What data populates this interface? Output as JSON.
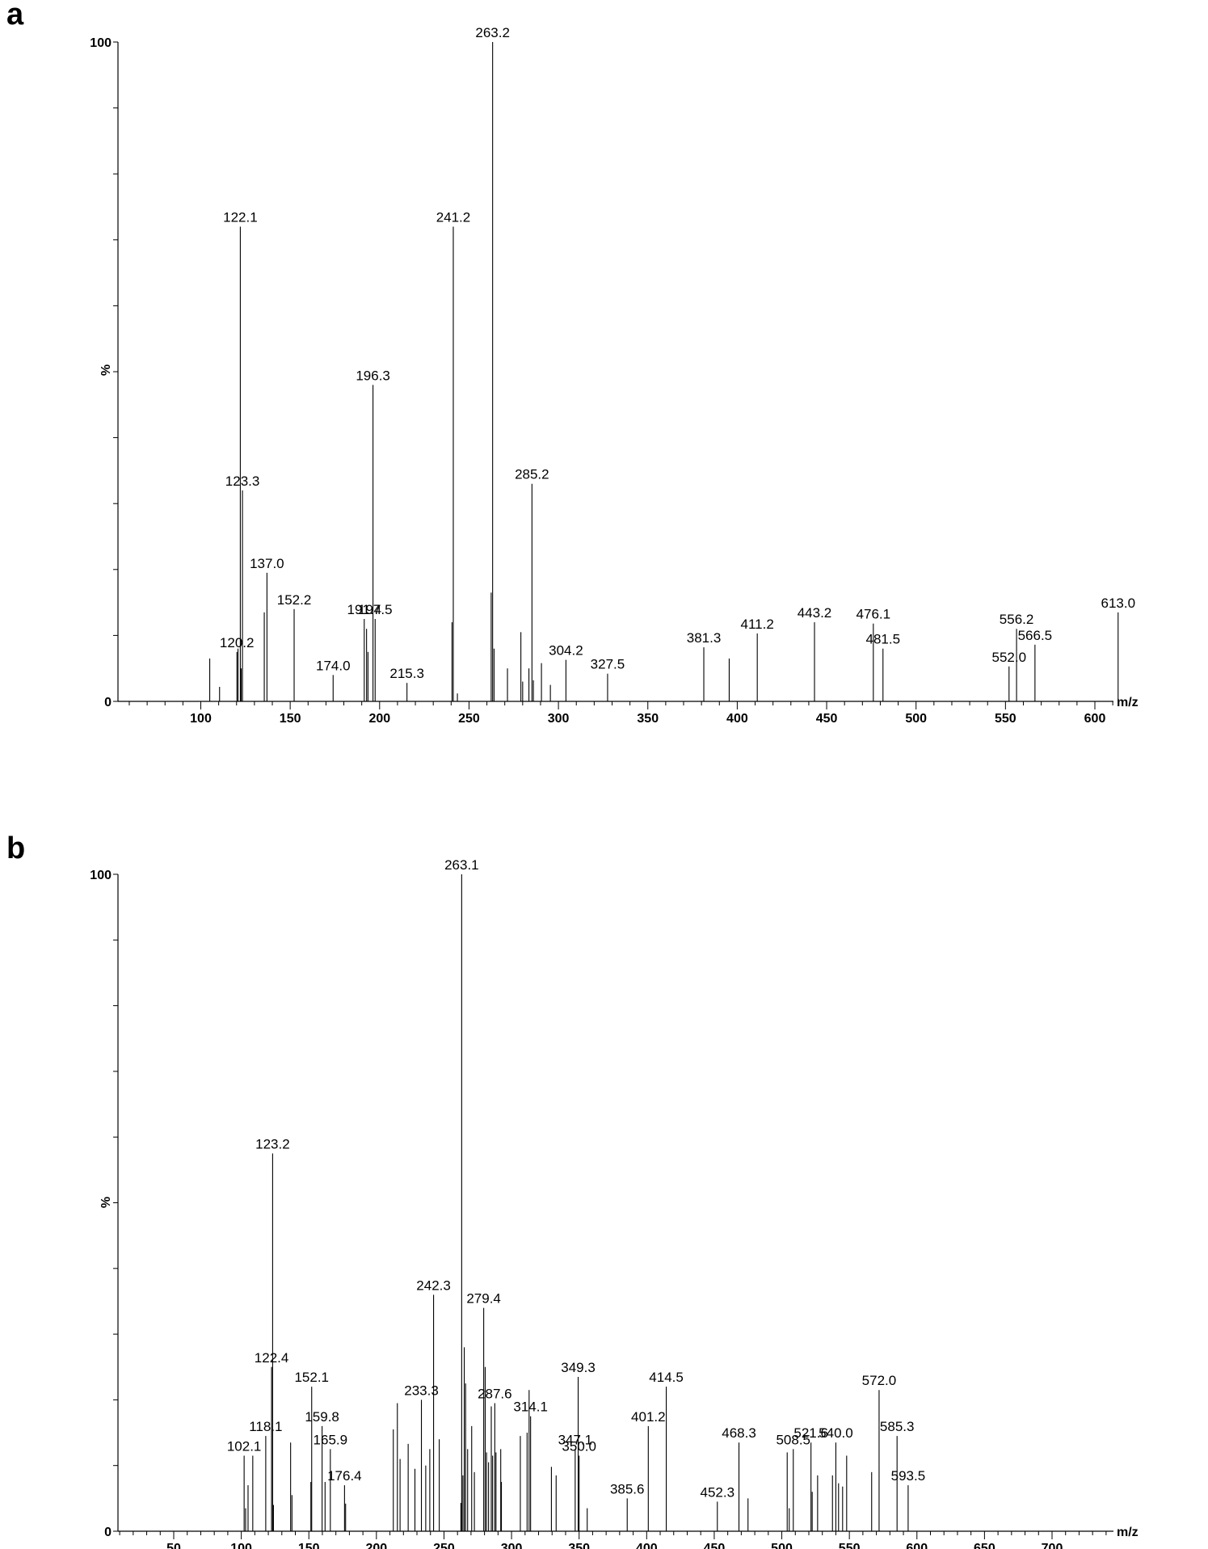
{
  "chart_data": [
    {
      "type": "bar",
      "panel_label": "a",
      "xlabel": "m/z",
      "ylabel": "%",
      "ylim": [
        0,
        100
      ],
      "y_ticks": [
        "0",
        "100"
      ],
      "xlim": [
        55,
        615
      ],
      "x_ticks": [
        100,
        150,
        200,
        250,
        300,
        350,
        400,
        450,
        500,
        550,
        600
      ],
      "x_tick_labels": [
        "100",
        "150",
        "200",
        "250",
        "300",
        "350",
        "400",
        "450",
        "500",
        "550",
        "600"
      ],
      "peaks": [
        {
          "mz": 105,
          "y": 6.5
        },
        {
          "mz": 110.5,
          "y": 2.2
        },
        {
          "mz": 120.2,
          "y": 7.5,
          "label": "120.2"
        },
        {
          "mz": 120.8,
          "y": 8.0
        },
        {
          "mz": 122.1,
          "y": 72,
          "label": "122.1"
        },
        {
          "mz": 122.6,
          "y": 5.0
        },
        {
          "mz": 123.3,
          "y": 32,
          "label": "123.3"
        },
        {
          "mz": 135.5,
          "y": 13.5
        },
        {
          "mz": 137.0,
          "y": 19.5,
          "label": "137.0"
        },
        {
          "mz": 152.2,
          "y": 14,
          "label": "152.2"
        },
        {
          "mz": 174.0,
          "y": 4,
          "label": "174.0"
        },
        {
          "mz": 191.4,
          "y": 12.5,
          "label": "191.4"
        },
        {
          "mz": 192.7,
          "y": 11
        },
        {
          "mz": 193.5,
          "y": 7.5
        },
        {
          "mz": 196.3,
          "y": 48,
          "label": "196.3"
        },
        {
          "mz": 197.5,
          "y": 12.5,
          "label": "197.5"
        },
        {
          "mz": 215.3,
          "y": 2.8,
          "label": "215.3"
        },
        {
          "mz": 240.5,
          "y": 12
        },
        {
          "mz": 241.2,
          "y": 72,
          "label": "241.2"
        },
        {
          "mz": 243.5,
          "y": 1.2
        },
        {
          "mz": 262.4,
          "y": 16.5
        },
        {
          "mz": 263.2,
          "y": 100,
          "label": "263.2"
        },
        {
          "mz": 264,
          "y": 8
        },
        {
          "mz": 271.5,
          "y": 5
        },
        {
          "mz": 279,
          "y": 10.5
        },
        {
          "mz": 280,
          "y": 3
        },
        {
          "mz": 283.5,
          "y": 5
        },
        {
          "mz": 285.2,
          "y": 33,
          "label": "285.2"
        },
        {
          "mz": 286,
          "y": 3.2
        },
        {
          "mz": 290.5,
          "y": 5.8
        },
        {
          "mz": 295.5,
          "y": 2.5
        },
        {
          "mz": 304.2,
          "y": 6.3,
          "label": "304.2"
        },
        {
          "mz": 327.5,
          "y": 4.2,
          "label": "327.5"
        },
        {
          "mz": 381.3,
          "y": 8.2,
          "label": "381.3"
        },
        {
          "mz": 395.5,
          "y": 6.5
        },
        {
          "mz": 411.2,
          "y": 10.3,
          "label": "411.2"
        },
        {
          "mz": 443.2,
          "y": 12,
          "label": "443.2"
        },
        {
          "mz": 476.1,
          "y": 11.8,
          "label": "476.1"
        },
        {
          "mz": 481.5,
          "y": 8,
          "label": "481.5"
        },
        {
          "mz": 552.0,
          "y": 5.3,
          "label": "552.0"
        },
        {
          "mz": 556.2,
          "y": 11,
          "label": "556.2"
        },
        {
          "mz": 566.5,
          "y": 8.6,
          "label": "566.5"
        },
        {
          "mz": 613.0,
          "y": 13.5,
          "label": "613.0"
        }
      ]
    },
    {
      "type": "bar",
      "panel_label": "b",
      "xlabel": "m/z",
      "ylabel": "%",
      "ylim": [
        0,
        100
      ],
      "y_ticks": [
        "0",
        "100"
      ],
      "xlim": [
        10,
        755
      ],
      "x_ticks": [
        50,
        100,
        150,
        200,
        250,
        300,
        350,
        400,
        450,
        500,
        550,
        600,
        650,
        700
      ],
      "x_tick_labels": [
        "50",
        "100",
        "150",
        "200",
        "250",
        "300",
        "350",
        "400",
        "450",
        "500",
        "550",
        "600",
        "650",
        "700"
      ],
      "peaks": [
        {
          "mz": 102.1,
          "y": 11.5,
          "label": "102.1"
        },
        {
          "mz": 103.2,
          "y": 3.5
        },
        {
          "mz": 105.0,
          "y": 7
        },
        {
          "mz": 108.5,
          "y": 11.5
        },
        {
          "mz": 118.1,
          "y": 14.5,
          "label": "118.1"
        },
        {
          "mz": 122.4,
          "y": 25,
          "label": "122.4"
        },
        {
          "mz": 123.2,
          "y": 57.5,
          "label": "123.2"
        },
        {
          "mz": 123.8,
          "y": 4
        },
        {
          "mz": 136.5,
          "y": 13.5
        },
        {
          "mz": 137.5,
          "y": 5.5
        },
        {
          "mz": 152.1,
          "y": 22,
          "label": "152.1"
        },
        {
          "mz": 151.5,
          "y": 7.5
        },
        {
          "mz": 159.8,
          "y": 16,
          "label": "159.8"
        },
        {
          "mz": 162.0,
          "y": 7.5
        },
        {
          "mz": 165.9,
          "y": 12.5,
          "label": "165.9"
        },
        {
          "mz": 176.4,
          "y": 7,
          "label": "176.4"
        },
        {
          "mz": 177.2,
          "y": 4.2
        },
        {
          "mz": 212.5,
          "y": 15.5
        },
        {
          "mz": 215.5,
          "y": 19.5
        },
        {
          "mz": 217.5,
          "y": 11
        },
        {
          "mz": 223.5,
          "y": 13.3
        },
        {
          "mz": 228.5,
          "y": 9.5
        },
        {
          "mz": 233.3,
          "y": 20,
          "label": "233.3"
        },
        {
          "mz": 236.5,
          "y": 10
        },
        {
          "mz": 239.5,
          "y": 12.5
        },
        {
          "mz": 242.3,
          "y": 36,
          "label": "242.3"
        },
        {
          "mz": 246.5,
          "y": 14
        },
        {
          "mz": 262.5,
          "y": 4.3
        },
        {
          "mz": 263.1,
          "y": 100,
          "label": "263.1"
        },
        {
          "mz": 264.0,
          "y": 8.5
        },
        {
          "mz": 265.0,
          "y": 28
        },
        {
          "mz": 266.0,
          "y": 22.5
        },
        {
          "mz": 267.5,
          "y": 12.5
        },
        {
          "mz": 270.5,
          "y": 16
        },
        {
          "mz": 272.5,
          "y": 9
        },
        {
          "mz": 279.4,
          "y": 34,
          "label": "279.4"
        },
        {
          "mz": 280.5,
          "y": 25
        },
        {
          "mz": 281.5,
          "y": 12
        },
        {
          "mz": 283.0,
          "y": 10.5
        },
        {
          "mz": 285.0,
          "y": 19
        },
        {
          "mz": 286.0,
          "y": 11.5
        },
        {
          "mz": 287.6,
          "y": 19.5,
          "label": "287.6"
        },
        {
          "mz": 288.5,
          "y": 12
        },
        {
          "mz": 292.0,
          "y": 12.5
        },
        {
          "mz": 292.5,
          "y": 7.5
        },
        {
          "mz": 306.5,
          "y": 14.5
        },
        {
          "mz": 311.5,
          "y": 15
        },
        {
          "mz": 313.0,
          "y": 21.5
        },
        {
          "mz": 314.1,
          "y": 17.5,
          "label": "314.1"
        },
        {
          "mz": 329.5,
          "y": 9.8
        },
        {
          "mz": 333.0,
          "y": 8.5
        },
        {
          "mz": 347.1,
          "y": 12.5,
          "label": "347.1"
        },
        {
          "mz": 349.3,
          "y": 23.5,
          "label": "349.3"
        },
        {
          "mz": 350.0,
          "y": 11.5,
          "label": "350.0"
        },
        {
          "mz": 356.0,
          "y": 3.5
        },
        {
          "mz": 385.6,
          "y": 5,
          "label": "385.6"
        },
        {
          "mz": 401.2,
          "y": 16,
          "label": "401.2"
        },
        {
          "mz": 414.5,
          "y": 22,
          "label": "414.5"
        },
        {
          "mz": 452.3,
          "y": 4.5,
          "label": "452.3"
        },
        {
          "mz": 468.3,
          "y": 13.5,
          "label": "468.3"
        },
        {
          "mz": 475.0,
          "y": 5
        },
        {
          "mz": 504.0,
          "y": 12
        },
        {
          "mz": 505.5,
          "y": 3.5
        },
        {
          "mz": 508.5,
          "y": 12.5,
          "label": "508.5"
        },
        {
          "mz": 521.6,
          "y": 13.5,
          "label": "521.6"
        },
        {
          "mz": 522.5,
          "y": 6
        },
        {
          "mz": 526.5,
          "y": 8.5
        },
        {
          "mz": 537.5,
          "y": 8.5
        },
        {
          "mz": 540.0,
          "y": 13.5,
          "label": "540.0"
        },
        {
          "mz": 542.0,
          "y": 7.3
        },
        {
          "mz": 545.0,
          "y": 6.8
        },
        {
          "mz": 548.0,
          "y": 11.5
        },
        {
          "mz": 566.5,
          "y": 9
        },
        {
          "mz": 572.0,
          "y": 21.5,
          "label": "572.0"
        },
        {
          "mz": 585.3,
          "y": 14.5,
          "label": "585.3"
        },
        {
          "mz": 593.5,
          "y": 7,
          "label": "593.5"
        }
      ]
    }
  ]
}
